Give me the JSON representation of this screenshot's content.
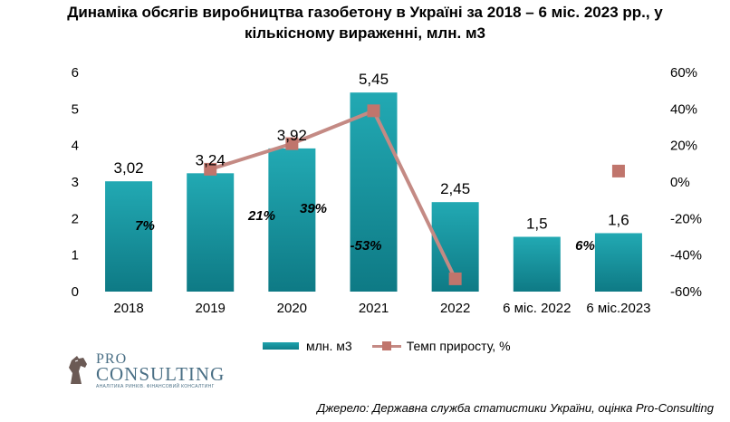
{
  "title_line1": "Динаміка обсягів виробництва газобетону в Україні за 2018 – 6 міс. 2023 рр., у",
  "title_line2": "кількісному вираженні, млн. м3",
  "legend": {
    "bar_label": "млн. м3",
    "line_label": "Темп приросту, %"
  },
  "logo": {
    "pro": "PRO",
    "consulting": "CONSULTING",
    "tagline": "АНАЛІТИКА РИНКІВ. ФІНАНСОВИЙ КОНСАЛТИНГ"
  },
  "source": "Джерело: Державна служба статистики України, оцінка Pro-Consulting",
  "colors": {
    "bar": "#138f9a",
    "line": "#c48a84",
    "marker": "#c0756c"
  },
  "chart_data": {
    "type": "bar",
    "categories": [
      "2018",
      "2019",
      "2020",
      "2021",
      "2022",
      "6 міс. 2022",
      "6 міс.2023"
    ],
    "series": [
      {
        "name": "млн. м3",
        "type": "bar",
        "values": [
          3.02,
          3.24,
          3.92,
          5.45,
          2.45,
          1.5,
          1.6
        ],
        "labels": [
          "3,02",
          "3,24",
          "3,92",
          "5,45",
          "2,45",
          "1,5",
          "1,6"
        ]
      },
      {
        "name": "Темп приросту, %",
        "type": "line",
        "axis": "right",
        "values": [
          null,
          7,
          21,
          39,
          -53,
          null,
          6
        ],
        "labels": [
          "",
          "7%",
          "21%",
          "39%",
          "-53%",
          "",
          "6%"
        ]
      }
    ],
    "y_left": {
      "min": 0,
      "max": 6,
      "ticks": [
        "0",
        "1",
        "2",
        "3",
        "4",
        "5",
        "6"
      ]
    },
    "y_right": {
      "min": -60,
      "max": 60,
      "ticks": [
        "-60%",
        "-40%",
        "-20%",
        "0%",
        "20%",
        "40%",
        "60%"
      ]
    },
    "grid": false,
    "legend_position": "bottom"
  }
}
